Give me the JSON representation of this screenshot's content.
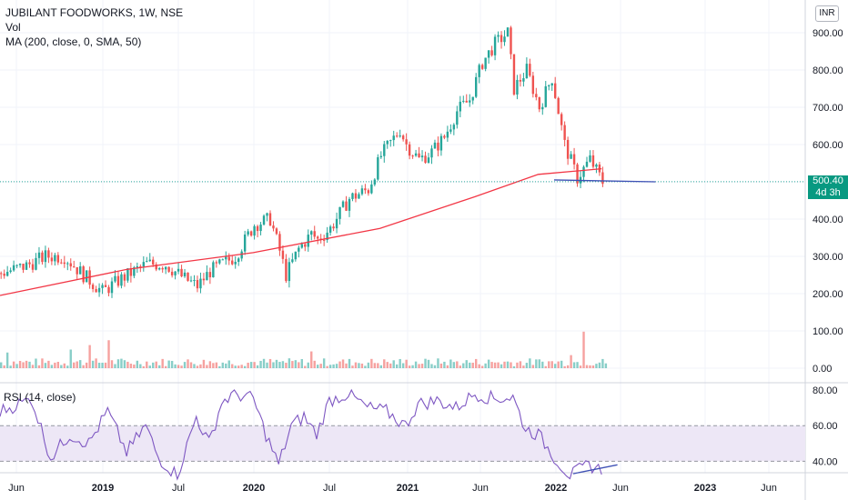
{
  "legend": {
    "title": "JUBILANT FOODWORKS, 1W, NSE",
    "vol": "Vol",
    "ma": "MA (200, close, 0, SMA, 50)"
  },
  "currency": "INR",
  "rsi_label": "RSI (14, close)",
  "last_price": {
    "value": "500.40",
    "countdown": "4d 3h"
  },
  "colors": {
    "up": "#26a69a",
    "down": "#ef5350",
    "ma": "#f23645",
    "rsi": "#7e57c2",
    "rsi_band": "#ede7f6",
    "trendline": "#3f51b5",
    "grid": "#f0f3fa"
  },
  "chart_data": [
    {
      "type": "candlestick",
      "title": "JUBILANT FOODWORKS, 1W, NSE",
      "x_ticks": [
        "Jun",
        "2019",
        "Jul",
        "2020",
        "Jul",
        "2021",
        "Jun",
        "2022",
        "Jun",
        "2023",
        "Jun"
      ],
      "y_ticks": [
        "900.00",
        "800.00",
        "700.00",
        "600.00",
        "500.00",
        "400.00",
        "300.00",
        "200.00",
        "100.00",
        "0.00"
      ],
      "ylim": [
        0,
        950
      ],
      "price_path": [
        [
          0,
          255
        ],
        [
          8,
          275
        ],
        [
          14,
          300
        ],
        [
          20,
          300
        ],
        [
          26,
          250
        ],
        [
          32,
          205
        ],
        [
          38,
          240
        ],
        [
          46,
          280
        ],
        [
          52,
          278
        ],
        [
          58,
          240
        ],
        [
          62,
          220
        ],
        [
          66,
          260
        ],
        [
          74,
          300
        ],
        [
          80,
          385
        ],
        [
          85,
          400
        ],
        [
          88,
          315
        ],
        [
          90,
          250
        ],
        [
          94,
          320
        ],
        [
          98,
          360
        ],
        [
          100,
          345
        ],
        [
          104,
          375
        ],
        [
          110,
          455
        ],
        [
          116,
          480
        ],
        [
          120,
          570
        ],
        [
          126,
          640
        ],
        [
          128,
          600
        ],
        [
          132,
          560
        ],
        [
          136,
          580
        ],
        [
          140,
          620
        ],
        [
          144,
          690
        ],
        [
          148,
          720
        ],
        [
          152,
          820
        ],
        [
          156,
          870
        ],
        [
          160,
          900
        ],
        [
          162,
          750
        ],
        [
          166,
          800
        ],
        [
          170,
          700
        ],
        [
          174,
          780
        ],
        [
          176,
          690
        ],
        [
          178,
          600
        ],
        [
          182,
          510
        ],
        [
          186,
          560
        ],
        [
          188,
          530
        ],
        [
          190,
          500
        ]
      ],
      "ma200": [
        [
          0,
          195
        ],
        [
          40,
          265
        ],
        [
          80,
          310
        ],
        [
          120,
          375
        ],
        [
          150,
          460
        ],
        [
          170,
          520
        ],
        [
          190,
          535
        ]
      ],
      "trendline": [
        [
          175,
          505
        ],
        [
          207,
          500
        ]
      ],
      "volume_ticks": [
        "100.00",
        "0.00"
      ],
      "volume_max": 100
    },
    {
      "type": "line",
      "title": "RSI (14, close)",
      "y_ticks": [
        "80.00",
        "60.00",
        "40.00"
      ],
      "ylim": [
        30,
        80
      ],
      "band": [
        40,
        60
      ],
      "rsi_path": [
        [
          0,
          68
        ],
        [
          10,
          75
        ],
        [
          16,
          42
        ],
        [
          22,
          55
        ],
        [
          28,
          50
        ],
        [
          34,
          68
        ],
        [
          40,
          45
        ],
        [
          46,
          60
        ],
        [
          50,
          42
        ],
        [
          56,
          32
        ],
        [
          62,
          65
        ],
        [
          66,
          50
        ],
        [
          70,
          73
        ],
        [
          74,
          78
        ],
        [
          80,
          75
        ],
        [
          84,
          55
        ],
        [
          88,
          38
        ],
        [
          92,
          60
        ],
        [
          96,
          65
        ],
        [
          100,
          55
        ],
        [
          104,
          74
        ],
        [
          110,
          78
        ],
        [
          116,
          70
        ],
        [
          122,
          68
        ],
        [
          128,
          60
        ],
        [
          132,
          72
        ],
        [
          138,
          74
        ],
        [
          144,
          70
        ],
        [
          150,
          78
        ],
        [
          156,
          75
        ],
        [
          162,
          76
        ],
        [
          166,
          58
        ],
        [
          170,
          55
        ],
        [
          176,
          40
        ],
        [
          180,
          32
        ],
        [
          186,
          38
        ],
        [
          190,
          35
        ]
      ],
      "trendline": [
        [
          181,
          33
        ],
        [
          195,
          38
        ]
      ]
    }
  ]
}
